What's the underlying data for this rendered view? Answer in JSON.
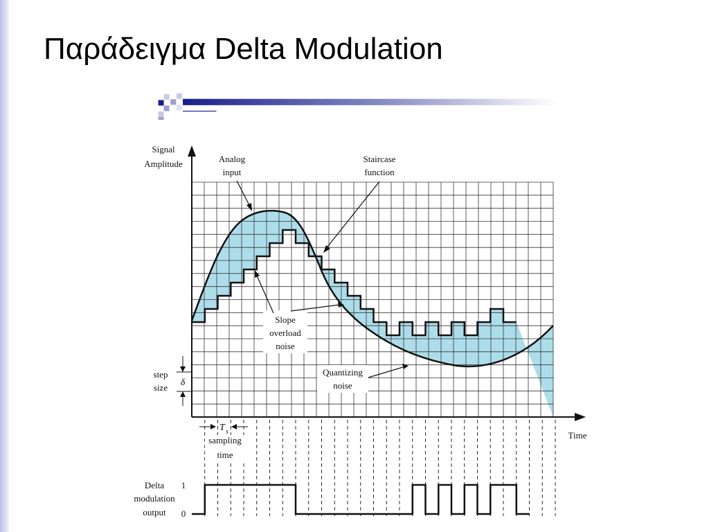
{
  "slide": {
    "title": "Παράδειγμα Delta Modulation",
    "accent_color": "#1a1f8c"
  },
  "diagram": {
    "y_axis_label_lines": [
      "Signal",
      "Amplitude"
    ],
    "x_axis_label": "Time",
    "analog_label_lines": [
      "Analog",
      "input"
    ],
    "staircase_label_lines": [
      "Staircase",
      "function"
    ],
    "slope_label_lines": [
      "Slope",
      "overload",
      "noise"
    ],
    "quant_label_lines": [
      "Quantizing",
      "noise"
    ],
    "step_label_lines": [
      "step",
      "size"
    ],
    "delta_symbol": "δ",
    "ts_label": "T",
    "ts_subscript": "s",
    "sampling_label_lines": [
      "sampling",
      "time"
    ],
    "output_label_lines": [
      "Delta",
      "modulation",
      "output"
    ],
    "level_one": "1",
    "level_zero": "0",
    "noise_fill_color": "#a9dbe9",
    "staircase_levels": [
      0,
      1,
      2,
      3,
      4,
      5,
      6,
      7,
      6,
      5,
      4,
      3,
      2,
      1,
      0,
      -1,
      0,
      -1,
      0,
      -1,
      0,
      -1,
      0,
      1,
      0
    ],
    "bits": [
      1,
      1,
      1,
      1,
      1,
      1,
      1,
      0,
      0,
      0,
      0,
      0,
      0,
      0,
      0,
      0,
      1,
      0,
      1,
      0,
      1,
      0,
      1,
      1,
      0
    ]
  }
}
